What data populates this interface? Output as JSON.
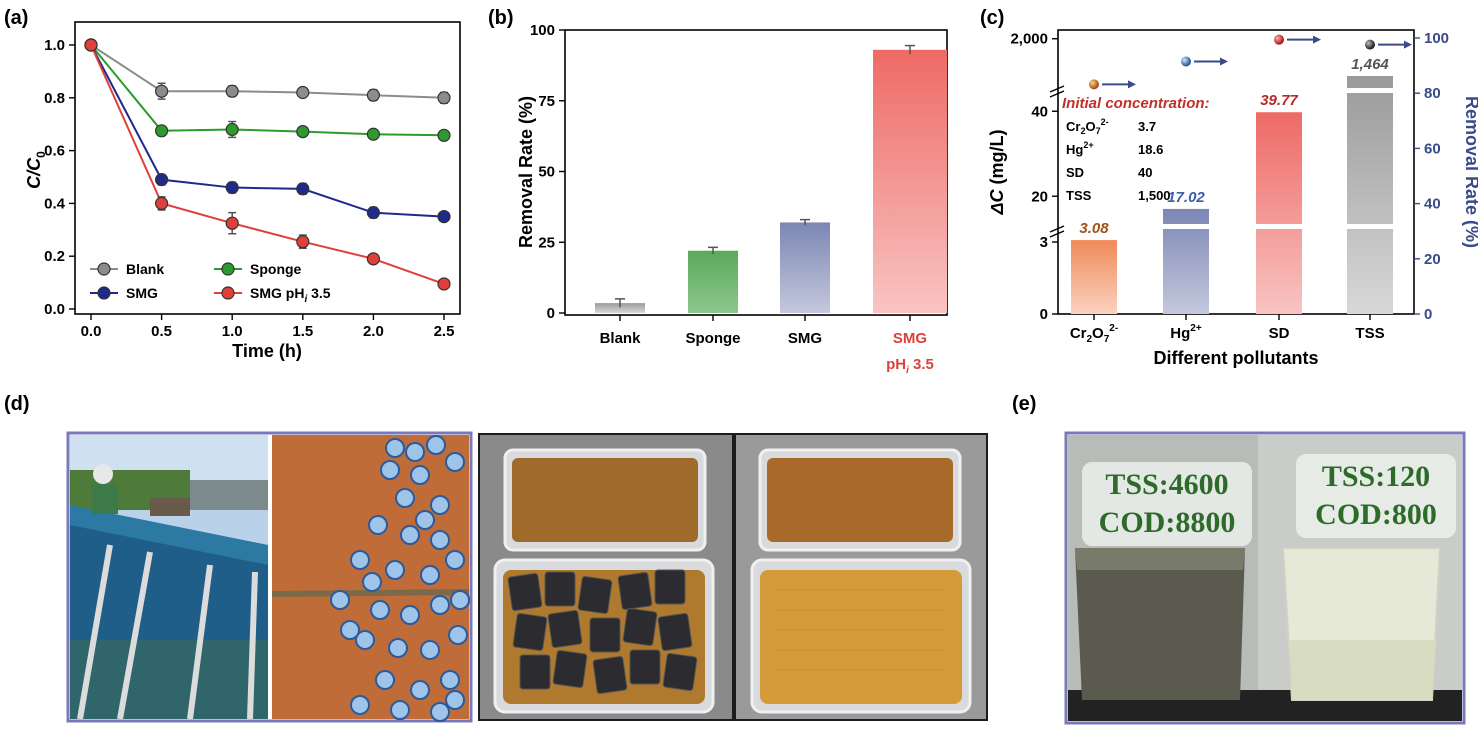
{
  "panel_labels": {
    "a": "(a)",
    "b": "(b)",
    "c": "(c)",
    "d": "(d)",
    "e": "(e)"
  },
  "chart_data": [
    {
      "type": "line",
      "ylabel": "C/C0",
      "xlabel": "Time (h)",
      "xlim": [
        0,
        2.5
      ],
      "ylim": [
        0,
        1.0
      ],
      "x": [
        0.0,
        0.5,
        1.0,
        1.5,
        2.0,
        2.5
      ],
      "x_ticks": [
        "0.0",
        "0.5",
        "1.0",
        "1.5",
        "2.0",
        "2.5"
      ],
      "y_ticks": [
        "0.0",
        "0.2",
        "0.4",
        "0.6",
        "0.8",
        "1.0"
      ],
      "legend_position": "bottom-left",
      "series": [
        {
          "name": "Blank",
          "color": "#8c8c8c",
          "values": [
            1.0,
            0.825,
            0.825,
            0.82,
            0.81,
            0.8
          ],
          "errors": [
            0,
            0.03,
            0.02,
            0.015,
            0.02,
            0.02
          ]
        },
        {
          "name": "Sponge",
          "color": "#2e9a2e",
          "values": [
            1.0,
            0.675,
            0.68,
            0.672,
            0.662,
            0.658
          ],
          "errors": [
            0,
            0.015,
            0.03,
            0.015,
            0.015,
            0.015
          ]
        },
        {
          "name": "SMG",
          "color": "#1f2a8a",
          "values": [
            1.0,
            0.49,
            0.46,
            0.455,
            0.365,
            0.35
          ],
          "errors": [
            0,
            0.02,
            0.02,
            0.02,
            0.02,
            0.015
          ]
        },
        {
          "name": "SMG pHi 3.5",
          "color": "#e0403a",
          "values": [
            1.0,
            0.4,
            0.325,
            0.255,
            0.19,
            0.095
          ],
          "errors": [
            0,
            0.025,
            0.04,
            0.025,
            0.015,
            0.01
          ]
        }
      ]
    },
    {
      "type": "bar",
      "ylabel": "Removal Rate (%)",
      "ylim": [
        0,
        100
      ],
      "y_ticks": [
        "0",
        "25",
        "50",
        "75",
        "100"
      ],
      "categories": [
        "Blank",
        "Sponge",
        "SMG",
        "SMG pHi 3.5"
      ],
      "values": [
        3.5,
        22,
        32,
        93
      ],
      "errors": [
        1.5,
        1.2,
        1.0,
        1.5
      ],
      "colors": [
        "#a8a8a8",
        "#5aaa5a",
        "#8890b8",
        "#ee7a76"
      ]
    },
    {
      "type": "bar",
      "xlabel": "Different pollutants",
      "ylabel": "ΔC (mg/L)",
      "y2label": "Removal Rate (%)",
      "categories": [
        "Cr2O7 2-",
        "Hg2+",
        "SD",
        "TSS"
      ],
      "values": [
        3.08,
        17.02,
        39.77,
        1464
      ],
      "value_labels": [
        "3.08",
        "17.02",
        "39.77",
        "1,464"
      ],
      "label_colors": [
        "#a0521a",
        "#3a5ea8",
        "#b82a2a",
        "#555555"
      ],
      "colors": [
        "#f09a6e",
        "#7c86b4",
        "#ee7a76",
        "#8c8c8c"
      ],
      "removal_rate": [
        83.2,
        91.5,
        99.4,
        97.6
      ],
      "y_ticks": [
        "0",
        "3",
        "20",
        "40",
        "2,000"
      ],
      "y2_ticks": [
        "0",
        "20",
        "40",
        "60",
        "80",
        "100"
      ],
      "inset": {
        "title": "Initial concentration:",
        "rows": [
          [
            "Cr2O7",
            "2-",
            "3.7"
          ],
          [
            "Hg",
            "2+",
            "18.6"
          ],
          [
            "SD",
            "",
            "40"
          ],
          [
            "TSS",
            "",
            "1,500"
          ]
        ]
      }
    }
  ],
  "photos_d": [
    "Field tank with workers",
    "Orange wastewater with floating blue spheres",
    "Plastic box with dark SMG blocks",
    "Plastic box after treatment"
  ],
  "photo_e": {
    "left": {
      "tss": "TSS:4600",
      "cod": "COD:8800"
    },
    "right": {
      "tss": "TSS:120",
      "cod": "COD:800"
    }
  }
}
